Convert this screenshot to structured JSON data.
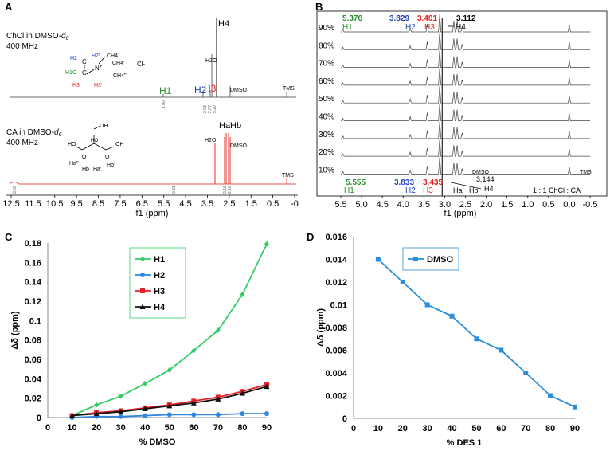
{
  "panels": {
    "A": {
      "label": "A",
      "spec1": {
        "title_main": "ChCl in DMSO-",
        "title_sub": "d",
        "title_sub2": "6",
        "freq": "400 MHz",
        "structure_labels": [
          "H2",
          "H2'",
          "CH4",
          "CH4'",
          "H1O",
          "H3",
          "H3'",
          "CH4''",
          "Cl-"
        ],
        "peaks": {
          "h1": "H1",
          "h2": "H2",
          "h3": "H3",
          "h4": "H4",
          "h2o": "H2O",
          "dmso": "DMSO",
          "tms": "TMS"
        },
        "integrals": [
          "1.00",
          "2.03",
          "2.07",
          "9.20"
        ]
      },
      "spec2": {
        "title_main": "CA in DMSO-",
        "title_sub": "d",
        "title_sub2": "6",
        "freq": "400 MHz",
        "structure_labels": [
          "OH",
          "HO",
          "O",
          "O",
          "OH",
          "Ha''",
          "Hb",
          "Ha'",
          "Hb'"
        ],
        "peaks": {
          "hab": "HaHb",
          "h2o": "H2O",
          "dmso": "DMSO",
          "tms": "TMS"
        },
        "integrals": [
          "3.00",
          "0.31",
          "2.16",
          "2.26"
        ]
      },
      "x_ticks": [
        "12.5",
        "11.5",
        "10.5",
        "9.5",
        "8.5",
        "7.5",
        "6.5",
        "5.5",
        "4.5",
        "3.5",
        "2.5",
        "1.5",
        "0.5",
        "-0"
      ],
      "xlabel": "f1 (ppm)"
    },
    "B": {
      "label": "B",
      "top_values": {
        "h1": "5.376",
        "h2": "3.829",
        "h3": "3.401",
        "h4": "3.112"
      },
      "top_peak_labels": {
        "h1": "H1",
        "h2": "H2",
        "h3": "H3",
        "h4": "H4"
      },
      "percents": [
        "90%",
        "80%",
        "70%",
        "60%",
        "50%",
        "40%",
        "30%",
        "20%",
        "10%"
      ],
      "bottom_values": {
        "h1": "5.555",
        "h2": "3.833",
        "h3": "3.435",
        "h4": "3.144"
      },
      "bottom_peak_labels": {
        "h1": "H1",
        "h2": "H2",
        "h3": "H3",
        "ha": "Ha",
        "hb": "Hb",
        "h4": "H4"
      },
      "dmso": "DMSO",
      "tms": "TMS",
      "ratio": "1 : 1 ChCl : CA",
      "x_ticks": [
        "5.5",
        "5.0",
        "4.5",
        "4.0",
        "3.5",
        "3.0",
        "2.5",
        "2.0",
        "1.5",
        "1.0",
        "0.5",
        "0.0",
        "-0.5"
      ],
      "xlabel": "f1 (ppm)"
    }
  },
  "colors": {
    "green": "#2a8f2a",
    "blue": "#1f3fbf",
    "red": "#e02020",
    "spec2": "#e8504a",
    "c_green": "#33cc66",
    "c_blue": "#2e86de",
    "c_red": "#e8202a",
    "c_black": "#111111",
    "d_blue": "#2a8fd8"
  },
  "chart_data": [
    {
      "id": "C",
      "label": "C",
      "type": "line",
      "x": [
        10,
        20,
        30,
        40,
        50,
        60,
        70,
        80,
        90
      ],
      "series": [
        {
          "name": "H1",
          "values": [
            0.002,
            0.013,
            0.022,
            0.035,
            0.049,
            0.069,
            0.09,
            0.127,
            0.179
          ]
        },
        {
          "name": "H2",
          "values": [
            0.0,
            0.001,
            0.001,
            0.002,
            0.003,
            0.003,
            0.003,
            0.004,
            0.004
          ]
        },
        {
          "name": "H3",
          "values": [
            0.002,
            0.005,
            0.007,
            0.01,
            0.013,
            0.017,
            0.021,
            0.027,
            0.034
          ]
        },
        {
          "name": "H4",
          "values": [
            0.002,
            0.004,
            0.006,
            0.009,
            0.012,
            0.015,
            0.019,
            0.025,
            0.032
          ]
        }
      ],
      "xlabel": "% DMSO",
      "ylabel": "Δδ (ppm)",
      "xlim": [
        0,
        90
      ],
      "ylim": [
        0,
        0.18
      ],
      "x_ticks": [
        "0",
        "10",
        "20",
        "30",
        "40",
        "50",
        "60",
        "70",
        "80",
        "90"
      ],
      "y_ticks": [
        "0",
        "0.02",
        "0.04",
        "0.06",
        "0.08",
        "0.1",
        "0.12",
        "0.14",
        "0.16",
        "0.18"
      ],
      "legend": "top-center"
    },
    {
      "id": "D",
      "label": "D",
      "type": "line",
      "x": [
        10,
        20,
        30,
        40,
        50,
        60,
        70,
        80,
        90
      ],
      "series": [
        {
          "name": "DMSO",
          "values": [
            0.014,
            0.012,
            0.01,
            0.009,
            0.007,
            0.006,
            0.004,
            0.002,
            0.001
          ]
        }
      ],
      "xlabel": "% DES 1",
      "ylabel": "Δδ (ppm)",
      "xlim": [
        0,
        90
      ],
      "ylim": [
        0,
        0.016
      ],
      "x_ticks": [
        "0",
        "10",
        "20",
        "30",
        "40",
        "50",
        "60",
        "70",
        "80",
        "90"
      ],
      "y_ticks": [
        "0",
        "0.002",
        "0.004",
        "0.006",
        "0.008",
        "0.01",
        "0.012",
        "0.014",
        "0.016"
      ],
      "legend": "top-left"
    }
  ]
}
